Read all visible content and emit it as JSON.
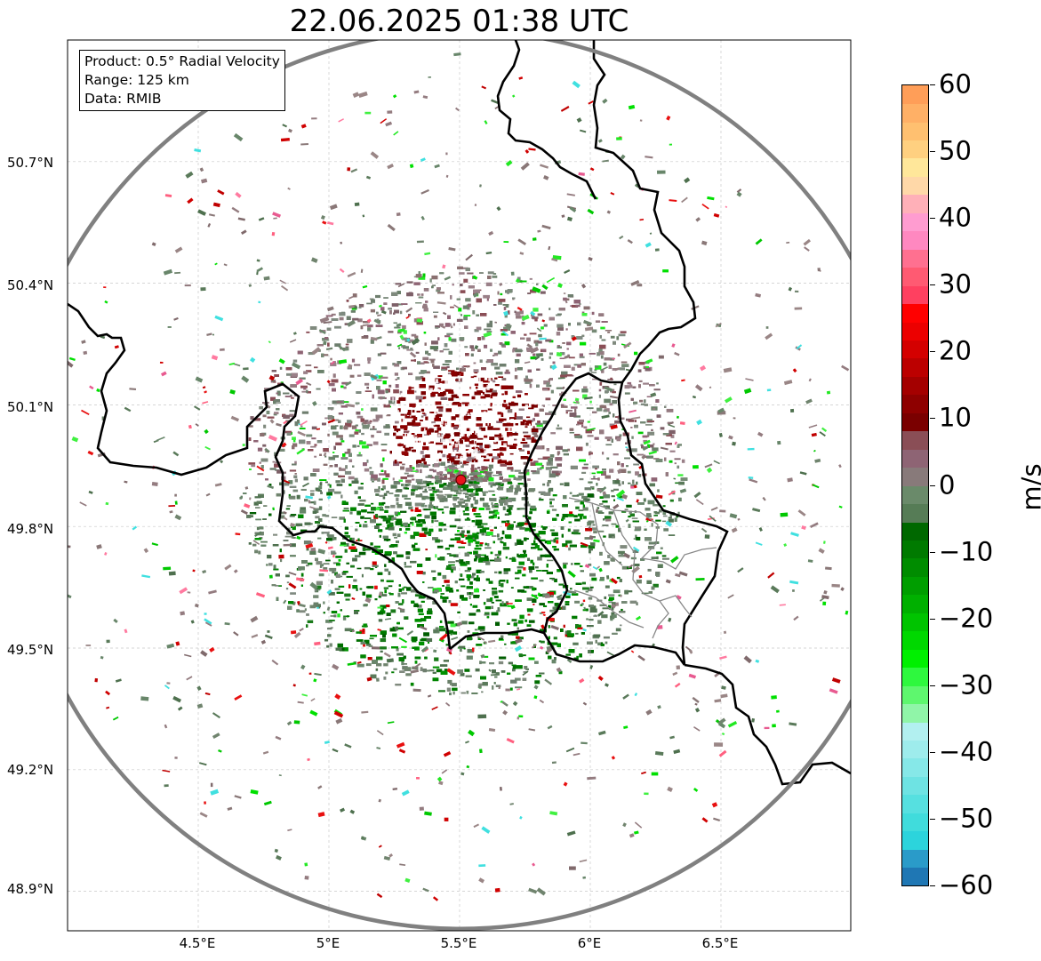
{
  "title": "22.06.2025 01:38 UTC",
  "info": {
    "product": "Product: 0.5° Radial Velocity",
    "range": "Range: 125 km",
    "data": "Data: RMIB"
  },
  "axes": {
    "lat_labels": [
      "50.7°N",
      "50.4°N",
      "50.1°N",
      "49.8°N",
      "49.5°N",
      "49.2°N",
      "48.9°N"
    ],
    "lon_labels": [
      "4.5°E",
      "5°E",
      "5.5°E",
      "6°E",
      "6.5°E"
    ]
  },
  "colorbar": {
    "unit": "m/s",
    "tick_labels": [
      "60",
      "50",
      "40",
      "30",
      "20",
      "10",
      "0",
      "−10",
      "−20",
      "−30",
      "−40",
      "−50",
      "−60"
    ],
    "min": -60,
    "max": 60,
    "colors": [
      "#1f77b4",
      "#2a9bc9",
      "#2cd4dc",
      "#40dcdc",
      "#56e0e0",
      "#6ee3e3",
      "#86e8e8",
      "#9eecec",
      "#b2f0f0",
      "#90f5a8",
      "#5ef76e",
      "#2ef83e",
      "#00f000",
      "#00d800",
      "#00c400",
      "#00b000",
      "#009e00",
      "#008c00",
      "#007a00",
      "#006800",
      "#567c56",
      "#6a8a6a",
      "#887a7a",
      "#8e6474",
      "#8a4e56",
      "#7a0000",
      "#8e0000",
      "#a40000",
      "#bc0000",
      "#d40000",
      "#ec0000",
      "#ff0000",
      "#ff4060",
      "#ff5a72",
      "#ff7090",
      "#ff88c0",
      "#ff9cd0",
      "#ffb0b8",
      "#ffd8a8",
      "#ffe79a",
      "#ffd080",
      "#ffc070",
      "#ffb066",
      "#ff9e58"
    ]
  },
  "map": {
    "radar_site": {
      "lon": 5.505,
      "lat": 49.915
    },
    "range_km": 125,
    "lon_min": 4.0,
    "lon_max": 7.0,
    "lat_min": 48.8,
    "lat_max": 51.0,
    "colors": {
      "border": "#000000",
      "range_ring": "#808080",
      "radar_marker": "#e8141e",
      "grid": "#c8c8c8"
    }
  }
}
